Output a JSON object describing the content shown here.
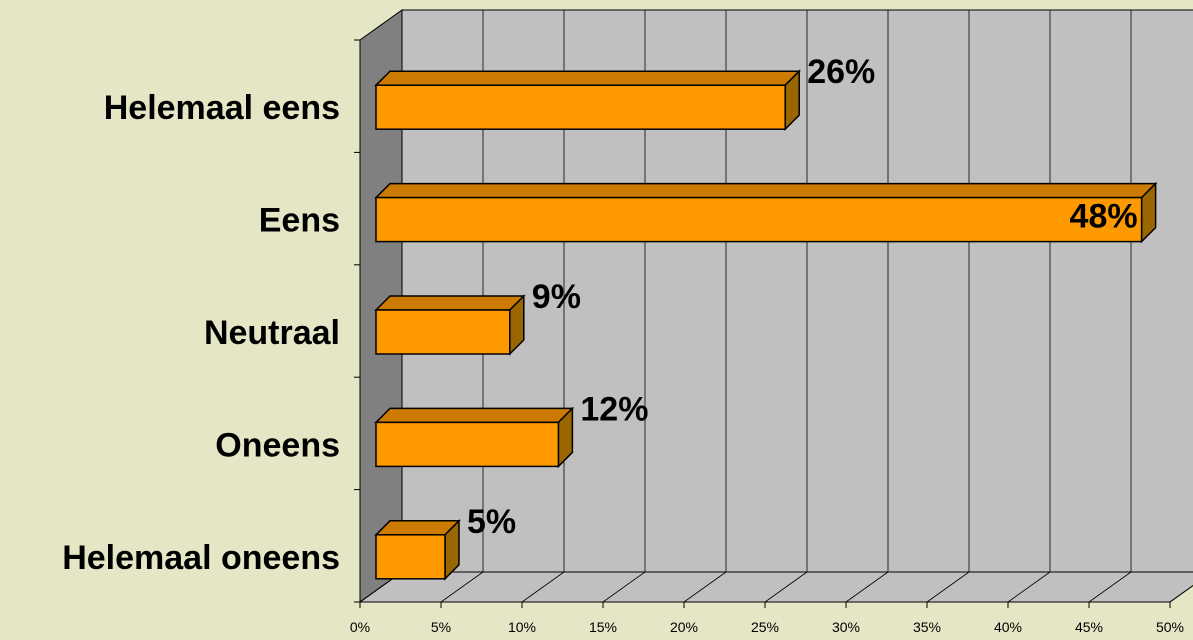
{
  "chart_data": {
    "type": "bar",
    "orientation": "horizontal",
    "three_d": true,
    "categories": [
      "Helemaal eens",
      "Eens",
      "Neutraal",
      "Oneens",
      "Helemaal oneens"
    ],
    "values": [
      26,
      48,
      9,
      12,
      5
    ],
    "data_labels": [
      "26%",
      "48%",
      "9%",
      "12%",
      "5%"
    ],
    "xlim": [
      0,
      50
    ],
    "x_ticks": [
      "0%",
      "5%",
      "10%",
      "15%",
      "20%",
      "25%",
      "30%",
      "35%",
      "40%",
      "45%",
      "50%"
    ],
    "grid": true,
    "legend": "none",
    "colors": {
      "background": "#e5e6c5",
      "plot_wall": "#c0c0c0",
      "side_wall": "#808080",
      "floor": "#c0c0c0",
      "bar_front": "#ff9900",
      "bar_top": "#cc7a00",
      "bar_side": "#996600"
    }
  }
}
